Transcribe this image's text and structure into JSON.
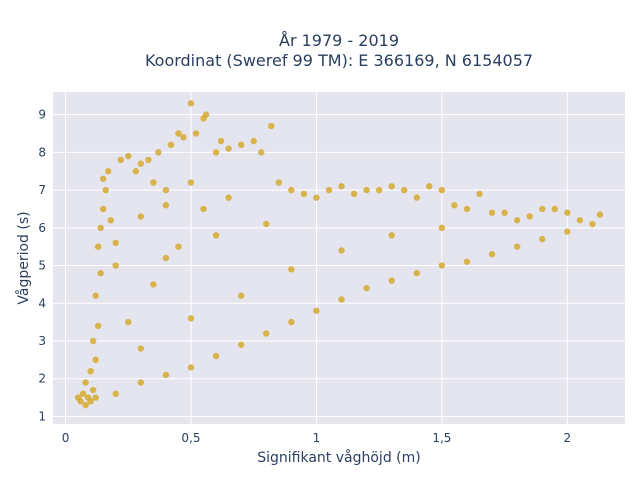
{
  "chart_data": {
    "type": "scatter",
    "title": [
      "År 1979 - 2019",
      "Koordinat (Sweref 99 TM): E 366169, N 6154057"
    ],
    "xlabel": "Signifikant våghöjd (m)",
    "ylabel": "Vågperiod (s)",
    "xlim": [
      -0.05,
      2.23
    ],
    "ylim": [
      0.8,
      9.6
    ],
    "xticks": [
      0,
      0.5,
      1,
      1.5,
      2
    ],
    "xticklabels": [
      "0",
      "0,5",
      "1",
      "1,5",
      "2"
    ],
    "yticks": [
      1,
      2,
      3,
      4,
      5,
      6,
      7,
      8,
      9
    ],
    "yticklabels": [
      "1",
      "2",
      "3",
      "4",
      "5",
      "6",
      "7",
      "8",
      "9"
    ],
    "grid": true,
    "legend": "none",
    "marker_color": "#D4A520",
    "background_color": "#E5E5F0",
    "series": [
      {
        "values": [
          [
            0.05,
            1.5
          ],
          [
            0.06,
            1.4
          ],
          [
            0.07,
            1.6
          ],
          [
            0.08,
            1.3
          ],
          [
            0.09,
            1.5
          ],
          [
            0.1,
            1.4
          ],
          [
            0.11,
            1.7
          ],
          [
            0.12,
            1.5
          ],
          [
            0.08,
            1.9
          ],
          [
            0.1,
            2.2
          ],
          [
            0.12,
            2.5
          ],
          [
            0.11,
            3.0
          ],
          [
            0.13,
            3.4
          ],
          [
            0.12,
            4.2
          ],
          [
            0.14,
            4.8
          ],
          [
            0.13,
            5.5
          ],
          [
            0.14,
            6.0
          ],
          [
            0.15,
            6.5
          ],
          [
            0.16,
            7.0
          ],
          [
            0.15,
            7.3
          ],
          [
            0.17,
            7.5
          ],
          [
            0.18,
            6.2
          ],
          [
            0.2,
            5.6
          ],
          [
            0.22,
            7.8
          ],
          [
            0.25,
            7.9
          ],
          [
            0.28,
            7.5
          ],
          [
            0.3,
            7.7
          ],
          [
            0.33,
            7.8
          ],
          [
            0.35,
            7.2
          ],
          [
            0.37,
            8.0
          ],
          [
            0.4,
            7.0
          ],
          [
            0.42,
            8.2
          ],
          [
            0.45,
            8.5
          ],
          [
            0.47,
            8.4
          ],
          [
            0.5,
            9.3
          ],
          [
            0.52,
            8.5
          ],
          [
            0.55,
            8.9
          ],
          [
            0.56,
            9.0
          ],
          [
            0.6,
            8.0
          ],
          [
            0.62,
            8.3
          ],
          [
            0.65,
            8.1
          ],
          [
            0.7,
            8.2
          ],
          [
            0.75,
            8.3
          ],
          [
            0.78,
            8.0
          ],
          [
            0.82,
            8.7
          ],
          [
            0.85,
            7.2
          ],
          [
            0.9,
            7.0
          ],
          [
            0.95,
            6.9
          ],
          [
            1.0,
            6.8
          ],
          [
            1.05,
            7.0
          ],
          [
            1.1,
            7.1
          ],
          [
            1.15,
            6.9
          ],
          [
            1.2,
            7.0
          ],
          [
            1.25,
            7.0
          ],
          [
            1.3,
            7.1
          ],
          [
            1.35,
            7.0
          ],
          [
            1.4,
            6.8
          ],
          [
            1.45,
            7.1
          ],
          [
            1.5,
            7.0
          ],
          [
            1.55,
            6.6
          ],
          [
            1.6,
            6.5
          ],
          [
            1.65,
            6.9
          ],
          [
            1.7,
            6.4
          ],
          [
            1.75,
            6.4
          ],
          [
            1.8,
            6.2
          ],
          [
            1.85,
            6.3
          ],
          [
            1.9,
            6.5
          ],
          [
            1.95,
            6.5
          ],
          [
            2.0,
            6.4
          ],
          [
            2.05,
            6.2
          ],
          [
            2.1,
            6.1
          ],
          [
            2.13,
            6.35
          ],
          [
            0.2,
            1.6
          ],
          [
            0.3,
            1.9
          ],
          [
            0.4,
            2.1
          ],
          [
            0.5,
            2.3
          ],
          [
            0.6,
            2.6
          ],
          [
            0.7,
            2.9
          ],
          [
            0.8,
            3.2
          ],
          [
            0.9,
            3.5
          ],
          [
            1.0,
            3.8
          ],
          [
            1.1,
            4.1
          ],
          [
            1.2,
            4.4
          ],
          [
            1.3,
            4.6
          ],
          [
            1.4,
            4.8
          ],
          [
            1.5,
            5.0
          ],
          [
            1.6,
            5.1
          ],
          [
            1.7,
            5.3
          ],
          [
            1.8,
            5.5
          ],
          [
            1.9,
            5.7
          ],
          [
            2.0,
            5.9
          ],
          [
            0.3,
            2.8
          ],
          [
            0.5,
            3.6
          ],
          [
            0.7,
            4.2
          ],
          [
            0.9,
            4.9
          ],
          [
            1.1,
            5.4
          ],
          [
            1.3,
            5.8
          ],
          [
            1.5,
            6.0
          ],
          [
            0.4,
            5.2
          ],
          [
            0.6,
            5.8
          ],
          [
            0.8,
            6.1
          ],
          [
            0.25,
            3.5
          ],
          [
            0.35,
            4.5
          ],
          [
            0.45,
            5.5
          ],
          [
            0.55,
            6.5
          ],
          [
            0.65,
            6.8
          ],
          [
            0.2,
            5.0
          ],
          [
            0.3,
            6.3
          ],
          [
            0.4,
            6.6
          ],
          [
            0.5,
            7.2
          ]
        ]
      }
    ]
  }
}
